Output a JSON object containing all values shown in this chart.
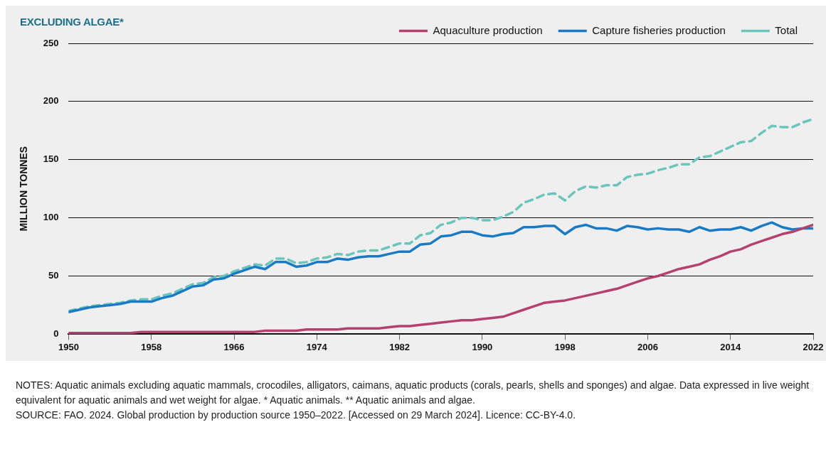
{
  "chart_data": {
    "type": "line",
    "title": "EXCLUDING ALGAE*",
    "ylabel": "MILLION TONNES",
    "x": [
      1950,
      1951,
      1952,
      1953,
      1954,
      1955,
      1956,
      1957,
      1958,
      1959,
      1960,
      1961,
      1962,
      1963,
      1964,
      1965,
      1966,
      1967,
      1968,
      1969,
      1970,
      1971,
      1972,
      1973,
      1974,
      1975,
      1976,
      1977,
      1978,
      1979,
      1980,
      1981,
      1982,
      1983,
      1984,
      1985,
      1986,
      1987,
      1988,
      1989,
      1990,
      1991,
      1992,
      1993,
      1994,
      1995,
      1996,
      1997,
      1998,
      1999,
      2000,
      2001,
      2002,
      2003,
      2004,
      2005,
      2006,
      2007,
      2008,
      2009,
      2010,
      2011,
      2012,
      2013,
      2014,
      2015,
      2016,
      2017,
      2018,
      2019,
      2020,
      2021,
      2022
    ],
    "series": [
      {
        "name": "Aquaculture production",
        "color": "#b5416f",
        "values": [
          1,
          1,
          1,
          1,
          1,
          1,
          1,
          2,
          2,
          2,
          2,
          2,
          2,
          2,
          2,
          2,
          2,
          2,
          2,
          3,
          3,
          3,
          3,
          4,
          4,
          4,
          4,
          5,
          5,
          5,
          5,
          6,
          7,
          7,
          8,
          9,
          10,
          11,
          12,
          12,
          13,
          14,
          15,
          18,
          21,
          24,
          27,
          28,
          29,
          31,
          33,
          35,
          37,
          39,
          42,
          45,
          48,
          50,
          53,
          56,
          58,
          60,
          64,
          67,
          71,
          73,
          77,
          80,
          83,
          86,
          88,
          91,
          94
        ]
      },
      {
        "name": "Capture fisheries production",
        "color": "#1a7ac4",
        "values": [
          19,
          21,
          23,
          24,
          25,
          26,
          28,
          28,
          28,
          31,
          33,
          37,
          41,
          42,
          47,
          48,
          52,
          55,
          58,
          56,
          62,
          62,
          58,
          59,
          62,
          62,
          65,
          64,
          66,
          67,
          67,
          69,
          71,
          71,
          77,
          78,
          84,
          85,
          88,
          88,
          85,
          84,
          86,
          87,
          92,
          92,
          93,
          93,
          86,
          92,
          94,
          91,
          91,
          89,
          93,
          92,
          90,
          91,
          90,
          90,
          88,
          92,
          89,
          90,
          90,
          92,
          89,
          93,
          96,
          92,
          90,
          91,
          91
        ]
      },
      {
        "name": "Total",
        "color": "#6cc5bd",
        "line_style": "dashed",
        "values": [
          20,
          22,
          24,
          25,
          26,
          27,
          29,
          30,
          30,
          33,
          35,
          39,
          43,
          44,
          49,
          50,
          54,
          57,
          60,
          59,
          65,
          65,
          61,
          62,
          65,
          66,
          69,
          68,
          71,
          72,
          72,
          75,
          78,
          78,
          85,
          87,
          94,
          96,
          100,
          100,
          98,
          98,
          101,
          105,
          113,
          116,
          120,
          121,
          115,
          123,
          127,
          126,
          128,
          128,
          135,
          137,
          138,
          141,
          143,
          146,
          146,
          152,
          153,
          157,
          161,
          165,
          166,
          173,
          179,
          178,
          178,
          182,
          185
        ]
      }
    ],
    "xlim": [
      1950,
      2022
    ],
    "xticks": [
      1950,
      1958,
      1966,
      1974,
      1982,
      1990,
      1998,
      2006,
      2014,
      2022
    ],
    "ylim": [
      0,
      250
    ],
    "yticks": [
      0,
      50,
      100,
      150,
      200,
      250
    ],
    "grid": "y",
    "legend": "top right",
    "marker": "none",
    "line_style": "solid",
    "annotations": [
      "NOTES: Aquatic animals excluding aquatic mammals, crocodiles, alligators, caimans, aquatic products (corals, pearls, shells and sponges) and algae. Data expressed in live weight equivalent for aquatic animals and wet weight for algae. * Aquatic animals. ** Aquatic animals and algae.",
      "SOURCE: FAO. 2024. Global production by production source 1950–2022. [Accessed on 29 March 2024]. Licence: CC-BY-4.0."
    ]
  }
}
